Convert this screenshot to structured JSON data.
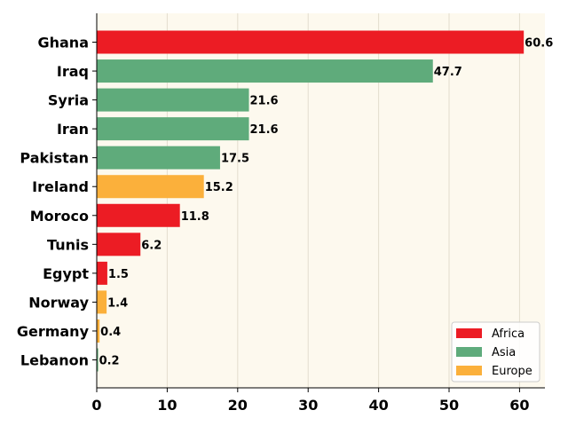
{
  "chart_data": {
    "type": "bar",
    "orientation": "horizontal",
    "categories": [
      "Ghana",
      "Iraq",
      "Syria",
      "Iran",
      "Pakistan",
      "Ireland",
      "Moroco",
      "Tunis",
      "Egypt",
      "Norway",
      "Germany",
      "Lebanon"
    ],
    "values": [
      60.6,
      47.7,
      21.6,
      21.6,
      17.5,
      15.2,
      11.8,
      6.2,
      1.5,
      1.4,
      0.4,
      0.2
    ],
    "value_labels": [
      "60.6",
      "47.7",
      "21.6",
      "21.6",
      "17.5",
      "15.2",
      "11.8",
      "6.2",
      "1.5",
      "1.4",
      "0.4",
      "0.2"
    ],
    "groups": [
      "Africa",
      "Asia",
      "Asia",
      "Asia",
      "Asia",
      "Europe",
      "Africa",
      "Africa",
      "Africa",
      "Europe",
      "Europe",
      "Asia"
    ],
    "legend": [
      {
        "name": "Africa",
        "color": "#ec1c24"
      },
      {
        "name": "Asia",
        "color": "#5fab7b"
      },
      {
        "name": "Europe",
        "color": "#fbb03b"
      }
    ],
    "xlim": [
      0,
      63.6
    ],
    "xticks": [
      0,
      10,
      20,
      30,
      40,
      50,
      60
    ],
    "xtick_labels": [
      "0",
      "10",
      "20",
      "30",
      "40",
      "50",
      "60"
    ],
    "title": "",
    "xlabel": "",
    "ylabel": "",
    "grid": "vertical",
    "legend_position": "bottom-right",
    "background_color": "#fdf9ee"
  }
}
